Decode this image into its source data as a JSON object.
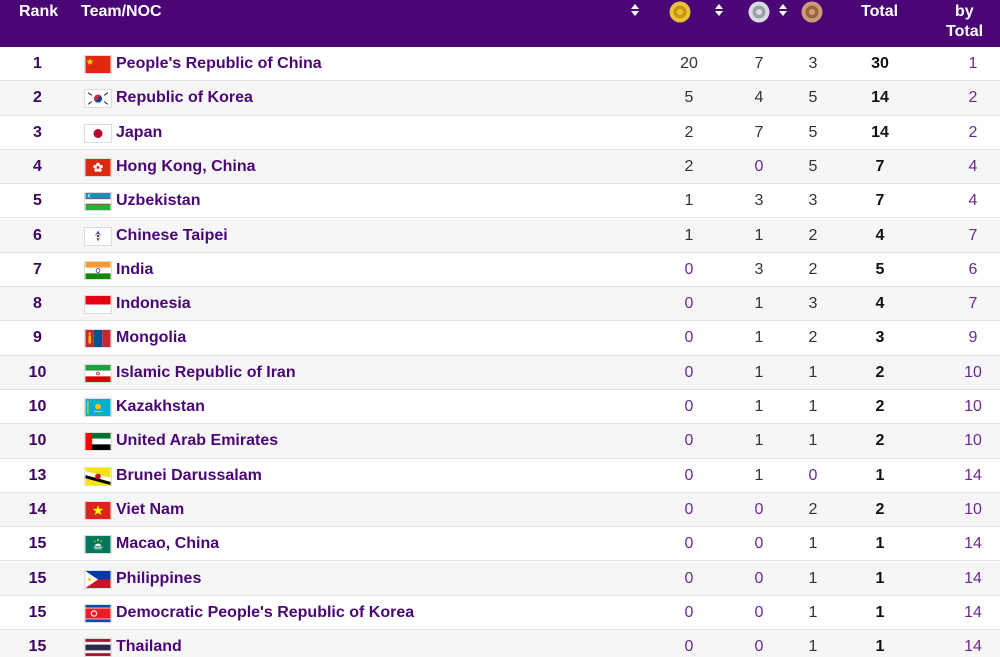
{
  "header": {
    "rank": "Rank",
    "team": "Team/NOC",
    "total": "Total",
    "by_line1": "by",
    "by_line2": "Total"
  },
  "colors": {
    "header_bg": "#4b0675",
    "accent": "#4b0675",
    "gold": "#d4a514",
    "silver": "#b8bcc4",
    "bronze": "#b07c58"
  },
  "icons": [
    "sort-icon",
    "gold-medal-icon",
    "silver-medal-icon",
    "bronze-medal-icon"
  ],
  "rows": [
    {
      "rank": "1",
      "team": "People's Republic of China",
      "flag": "china-flag-icon",
      "gold": "20",
      "silver": "7",
      "bronze": "3",
      "total": "30",
      "by_total": "1"
    },
    {
      "rank": "2",
      "team": "Republic of Korea",
      "flag": "korea-flag-icon",
      "gold": "5",
      "silver": "4",
      "bronze": "5",
      "total": "14",
      "by_total": "2"
    },
    {
      "rank": "3",
      "team": "Japan",
      "flag": "japan-flag-icon",
      "gold": "2",
      "silver": "7",
      "bronze": "5",
      "total": "14",
      "by_total": "2"
    },
    {
      "rank": "4",
      "team": "Hong Kong, China",
      "flag": "hong-kong-flag-icon",
      "gold": "2",
      "silver": "0",
      "bronze": "5",
      "total": "7",
      "by_total": "4"
    },
    {
      "rank": "5",
      "team": "Uzbekistan",
      "flag": "uzbekistan-flag-icon",
      "gold": "1",
      "silver": "3",
      "bronze": "3",
      "total": "7",
      "by_total": "4"
    },
    {
      "rank": "6",
      "team": "Chinese Taipei",
      "flag": "chinese-taipei-flag-icon",
      "gold": "1",
      "silver": "1",
      "bronze": "2",
      "total": "4",
      "by_total": "7"
    },
    {
      "rank": "7",
      "team": "India",
      "flag": "india-flag-icon",
      "gold": "0",
      "silver": "3",
      "bronze": "2",
      "total": "5",
      "by_total": "6"
    },
    {
      "rank": "8",
      "team": "Indonesia",
      "flag": "indonesia-flag-icon",
      "gold": "0",
      "silver": "1",
      "bronze": "3",
      "total": "4",
      "by_total": "7"
    },
    {
      "rank": "9",
      "team": "Mongolia",
      "flag": "mongolia-flag-icon",
      "gold": "0",
      "silver": "1",
      "bronze": "2",
      "total": "3",
      "by_total": "9"
    },
    {
      "rank": "10",
      "team": "Islamic Republic of Iran",
      "flag": "iran-flag-icon",
      "gold": "0",
      "silver": "1",
      "bronze": "1",
      "total": "2",
      "by_total": "10"
    },
    {
      "rank": "10",
      "team": "Kazakhstan",
      "flag": "kazakhstan-flag-icon",
      "gold": "0",
      "silver": "1",
      "bronze": "1",
      "total": "2",
      "by_total": "10"
    },
    {
      "rank": "10",
      "team": "United Arab Emirates",
      "flag": "uae-flag-icon",
      "gold": "0",
      "silver": "1",
      "bronze": "1",
      "total": "2",
      "by_total": "10"
    },
    {
      "rank": "13",
      "team": "Brunei Darussalam",
      "flag": "brunei-flag-icon",
      "gold": "0",
      "silver": "1",
      "bronze": "0",
      "total": "1",
      "by_total": "14"
    },
    {
      "rank": "14",
      "team": "Viet Nam",
      "flag": "vietnam-flag-icon",
      "gold": "0",
      "silver": "0",
      "bronze": "2",
      "total": "2",
      "by_total": "10"
    },
    {
      "rank": "15",
      "team": "Macao, China",
      "flag": "macao-flag-icon",
      "gold": "0",
      "silver": "0",
      "bronze": "1",
      "total": "1",
      "by_total": "14"
    },
    {
      "rank": "15",
      "team": "Philippines",
      "flag": "philippines-flag-icon",
      "gold": "0",
      "silver": "0",
      "bronze": "1",
      "total": "1",
      "by_total": "14"
    },
    {
      "rank": "15",
      "team": "Democratic People's Republic of Korea",
      "flag": "dprk-flag-icon",
      "gold": "0",
      "silver": "0",
      "bronze": "1",
      "total": "1",
      "by_total": "14"
    },
    {
      "rank": "15",
      "team": "Thailand",
      "flag": "thailand-flag-icon",
      "gold": "0",
      "silver": "0",
      "bronze": "1",
      "total": "1",
      "by_total": "14"
    }
  ]
}
